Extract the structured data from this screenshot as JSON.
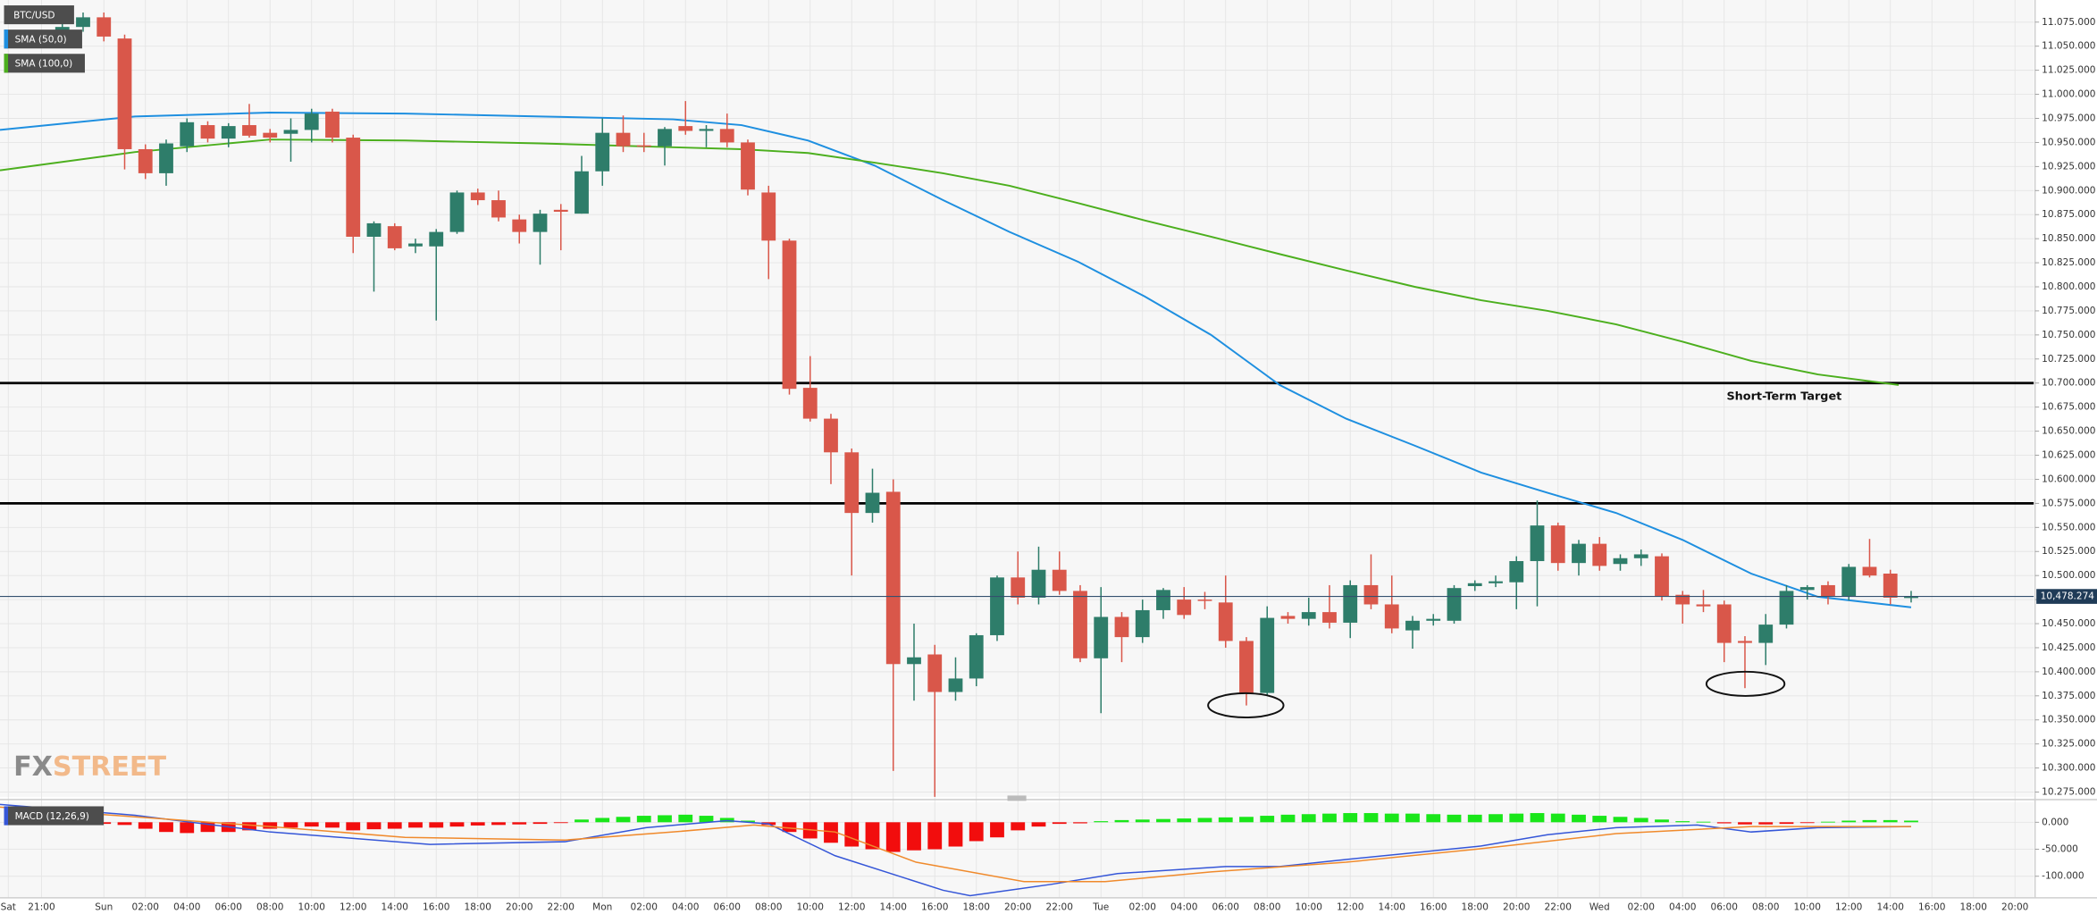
{
  "watermark": {
    "first": "FX",
    "second": "STREET"
  },
  "chart_data": [
    {
      "type": "candlestick",
      "title": "BTC/USD",
      "up_color": "#2e7d6a",
      "down_color": "#d9574a",
      "grid": true,
      "xlim": [
        -5,
        92.9
      ],
      "ylim": [
        10270,
        11098
      ],
      "x": [
        -2,
        -1,
        0,
        1,
        2,
        3,
        4,
        5,
        6,
        7,
        8,
        9,
        10,
        11,
        12,
        13,
        14,
        15,
        16,
        17,
        18,
        19,
        20,
        21,
        22,
        23,
        24,
        25,
        26,
        27,
        28,
        29,
        30,
        31,
        32,
        33,
        34,
        35,
        36,
        37,
        38,
        39,
        40,
        41,
        42,
        43,
        44,
        45,
        46,
        47,
        48,
        49,
        50,
        51,
        52,
        53,
        54,
        55,
        56,
        57,
        58,
        59,
        60,
        61,
        62,
        63,
        64,
        65,
        66,
        67,
        68,
        69,
        70,
        71,
        72,
        73,
        74,
        75,
        76,
        77,
        78,
        79,
        80,
        81,
        82,
        83,
        84,
        85,
        86,
        87
      ],
      "open": [
        11060,
        11070,
        11080,
        11058,
        10943,
        10918,
        10946,
        10968,
        10954,
        10968,
        10960,
        10959,
        10963,
        10982,
        10955,
        10852,
        10863,
        10842,
        10842,
        10857,
        10898,
        10890,
        10870,
        10857,
        10880,
        10876,
        10920,
        10960,
        10947,
        10946,
        10967,
        10962,
        10964,
        10950,
        10898,
        10848,
        10695,
        10663,
        10628,
        10565,
        10587,
        10408,
        10418,
        10379,
        10393,
        10438,
        10498,
        10477,
        10506,
        10484,
        10414,
        10457,
        10436,
        10464,
        10475,
        10475,
        10472,
        10432,
        10378,
        10458,
        10455,
        10462,
        10451,
        10490,
        10470,
        10443,
        10453,
        10453,
        10489,
        10492,
        10493,
        10515,
        10552,
        10513,
        10533,
        10512,
        10518,
        10520,
        10480,
        10470,
        10470,
        10432,
        10430,
        10449,
        10485,
        10490,
        10478,
        10509,
        10502,
        10477
      ],
      "high": [
        11080,
        11085,
        11085,
        11062,
        10948,
        10953,
        10975,
        10972,
        10970,
        10990,
        10964,
        10975,
        10985,
        10985,
        10958,
        10868,
        10866,
        10850,
        10860,
        10900,
        10902,
        10900,
        10875,
        10880,
        10886,
        10936,
        10975,
        10978,
        10960,
        10966,
        10993,
        10968,
        10980,
        10953,
        10905,
        10850,
        10728,
        10668,
        10632,
        10611,
        10600,
        10450,
        10428,
        10415,
        10440,
        10500,
        10525,
        10530,
        10525,
        10490,
        10488,
        10462,
        10475,
        10487,
        10488,
        10483,
        10500,
        10436,
        10468,
        10462,
        10477,
        10490,
        10495,
        10522,
        10500,
        10458,
        10460,
        10490,
        10495,
        10500,
        10520,
        10578,
        10555,
        10537,
        10540,
        10522,
        10527,
        10523,
        10484,
        10485,
        10474,
        10437,
        10460,
        10490,
        10490,
        10494,
        10512,
        10538,
        10506,
        10484
      ],
      "low": [
        11050,
        11065,
        11055,
        10922,
        10912,
        10905,
        10940,
        10950,
        10945,
        10955,
        10950,
        10930,
        10950,
        10950,
        10835,
        10795,
        10838,
        10835,
        10765,
        10855,
        10885,
        10868,
        10845,
        10823,
        10838,
        10876,
        10905,
        10940,
        10940,
        10926,
        10958,
        10945,
        10945,
        10895,
        10808,
        10688,
        10660,
        10595,
        10500,
        10555,
        10297,
        10370,
        10270,
        10370,
        10385,
        10432,
        10470,
        10470,
        10480,
        10410,
        10357,
        10410,
        10430,
        10455,
        10455,
        10465,
        10425,
        10365,
        10375,
        10450,
        10448,
        10445,
        10435,
        10465,
        10440,
        10424,
        10448,
        10450,
        10484,
        10488,
        10465,
        10468,
        10505,
        10500,
        10505,
        10505,
        10510,
        10474,
        10450,
        10462,
        10410,
        10383,
        10407,
        10445,
        10475,
        10470,
        10474,
        10498,
        10470,
        10472
      ],
      "close": [
        11070,
        11080,
        11060,
        10943,
        10918,
        10949,
        10971,
        10954,
        10967,
        10957,
        10955,
        10963,
        10980,
        10955,
        10852,
        10866,
        10840,
        10845,
        10857,
        10898,
        10890,
        10872,
        10857,
        10876,
        10878,
        10920,
        10960,
        10946,
        10946,
        10964,
        10962,
        10964,
        10950,
        10901,
        10848,
        10694,
        10663,
        10628,
        10565,
        10586,
        10408,
        10415,
        10379,
        10393,
        10438,
        10498,
        10477,
        10506,
        10484,
        10414,
        10457,
        10436,
        10464,
        10485,
        10459,
        10474,
        10432,
        10378,
        10456,
        10455,
        10462,
        10451,
        10490,
        10470,
        10445,
        10453,
        10455,
        10487,
        10492,
        10494,
        10515,
        10552,
        10513,
        10533,
        10510,
        10518,
        10522,
        10478,
        10470,
        10468,
        10430,
        10430,
        10449,
        10484,
        10488,
        10478,
        10509,
        10500,
        10477,
        10478
      ],
      "series": [
        {
          "name": "SMA (50,0)",
          "color": "#1e8fe0",
          "x": [
            -5.0,
            1.5,
            8.0,
            14.5,
            21.0,
            27.4,
            30.7,
            33.9,
            37.1,
            40.4,
            43.6,
            46.9,
            50.1,
            53.3,
            56.6,
            59.8,
            63.1,
            66.3,
            69.5,
            72.8,
            76.0,
            79.3,
            82.5,
            87.0
          ],
          "values": [
            10963,
            10977,
            10981,
            10980,
            10977,
            10974,
            10968,
            10952,
            10926,
            10890,
            10857,
            10826,
            10790,
            10750,
            10698,
            10663,
            10635,
            10607,
            10586,
            10565,
            10537,
            10502,
            10478,
            10467
          ]
        },
        {
          "name": "SMA (100,0)",
          "color": "#4caf1e",
          "x": [
            -5.0,
            1.5,
            8.0,
            14.5,
            21.0,
            27.4,
            30.7,
            33.9,
            37.1,
            40.4,
            43.6,
            46.9,
            50.1,
            53.3,
            56.6,
            59.8,
            63.1,
            66.3,
            69.5,
            72.8,
            76.0,
            79.3,
            82.5,
            86.4
          ],
          "values": [
            10921,
            10940,
            10953,
            10952,
            10949,
            10945,
            10943,
            10939,
            10929,
            10918,
            10905,
            10887,
            10869,
            10852,
            10834,
            10817,
            10800,
            10786,
            10775,
            10761,
            10743,
            10723,
            10709,
            10698
          ]
        }
      ],
      "hlines": [
        {
          "value": 10700,
          "label": "Short-Term Target"
        },
        {
          "value": 10575
        }
      ],
      "last_price": {
        "value": 10478.274,
        "label": "10,478.274"
      },
      "yticks": [
        {
          "value": 10275,
          "label": "10.275.000"
        },
        {
          "value": 10300,
          "label": "10.300.000"
        },
        {
          "value": 10325,
          "label": "10.325.000"
        },
        {
          "value": 10350,
          "label": "10.350.000"
        },
        {
          "value": 10375,
          "label": "10.375.000"
        },
        {
          "value": 10400,
          "label": "10.400.000"
        },
        {
          "value": 10425,
          "label": "10.425.000"
        },
        {
          "value": 10450,
          "label": "10.450.000"
        },
        {
          "value": 10475,
          "label": "10.475.000"
        },
        {
          "value": 10500,
          "label": "10.500.000"
        },
        {
          "value": 10525,
          "label": "10.525.000"
        },
        {
          "value": 10550,
          "label": "10.550.000"
        },
        {
          "value": 10575,
          "label": "10.575.000"
        },
        {
          "value": 10600,
          "label": "10.600.000"
        },
        {
          "value": 10625,
          "label": "10.625.000"
        },
        {
          "value": 10650,
          "label": "10.650.000"
        },
        {
          "value": 10675,
          "label": "10.675.000"
        },
        {
          "value": 10700,
          "label": "10.700.000"
        },
        {
          "value": 10725,
          "label": "10.725.000"
        },
        {
          "value": 10750,
          "label": "10.750.000"
        },
        {
          "value": 10775,
          "label": "10.775.000"
        },
        {
          "value": 10800,
          "label": "10.800.000"
        },
        {
          "value": 10825,
          "label": "10.825.000"
        },
        {
          "value": 10850,
          "label": "10.850.000"
        },
        {
          "value": 10875,
          "label": "10.875.000"
        },
        {
          "value": 10900,
          "label": "10.900.000"
        },
        {
          "value": 10925,
          "label": "10.925.000"
        },
        {
          "value": 10950,
          "label": "10.950.000"
        },
        {
          "value": 10975,
          "label": "10.975.000"
        },
        {
          "value": 11000,
          "label": "11.000.000"
        },
        {
          "value": 11025,
          "label": "11.025.000"
        },
        {
          "value": 11050,
          "label": "11.050.000"
        },
        {
          "value": 11075,
          "label": "11.075.000"
        }
      ],
      "xticks": [
        {
          "value": -4.6,
          "label": "Sat"
        },
        {
          "value": -3,
          "label": "21:00"
        },
        {
          "value": 0,
          "label": "Sun"
        },
        {
          "value": 2,
          "label": "02:00"
        },
        {
          "value": 4,
          "label": "04:00"
        },
        {
          "value": 6,
          "label": "06:00"
        },
        {
          "value": 8,
          "label": "08:00"
        },
        {
          "value": 10,
          "label": "10:00"
        },
        {
          "value": 12,
          "label": "12:00"
        },
        {
          "value": 14,
          "label": "14:00"
        },
        {
          "value": 16,
          "label": "16:00"
        },
        {
          "value": 18,
          "label": "18:00"
        },
        {
          "value": 20,
          "label": "20:00"
        },
        {
          "value": 22,
          "label": "22:00"
        },
        {
          "value": 24,
          "label": "Mon"
        },
        {
          "value": 26,
          "label": "02:00"
        },
        {
          "value": 28,
          "label": "04:00"
        },
        {
          "value": 30,
          "label": "06:00"
        },
        {
          "value": 32,
          "label": "08:00"
        },
        {
          "value": 34,
          "label": "10:00"
        },
        {
          "value": 36,
          "label": "12:00"
        },
        {
          "value": 38,
          "label": "14:00"
        },
        {
          "value": 40,
          "label": "16:00"
        },
        {
          "value": 42,
          "label": "18:00"
        },
        {
          "value": 44,
          "label": "20:00"
        },
        {
          "value": 46,
          "label": "22:00"
        },
        {
          "value": 48,
          "label": "Tue"
        },
        {
          "value": 50,
          "label": "02:00"
        },
        {
          "value": 52,
          "label": "04:00"
        },
        {
          "value": 54,
          "label": "06:00"
        },
        {
          "value": 56,
          "label": "08:00"
        },
        {
          "value": 58,
          "label": "10:00"
        },
        {
          "value": 60,
          "label": "12:00"
        },
        {
          "value": 62,
          "label": "14:00"
        },
        {
          "value": 64,
          "label": "16:00"
        },
        {
          "value": 66,
          "label": "18:00"
        },
        {
          "value": 68,
          "label": "20:00"
        },
        {
          "value": 70,
          "label": "22:00"
        },
        {
          "value": 72,
          "label": "Wed"
        },
        {
          "value": 74,
          "label": "02:00"
        },
        {
          "value": 76,
          "label": "04:00"
        },
        {
          "value": 78,
          "label": "06:00"
        },
        {
          "value": 80,
          "label": "08:00"
        },
        {
          "value": 82,
          "label": "10:00"
        },
        {
          "value": 84,
          "label": "12:00"
        },
        {
          "value": 86,
          "label": "14:00"
        },
        {
          "value": 88,
          "label": "16:00"
        },
        {
          "value": 90,
          "label": "18:00"
        },
        {
          "value": 92,
          "label": "20:00"
        }
      ]
    },
    {
      "type": "macd",
      "title": "MACD (12,26,9)",
      "up_color": "#19e619",
      "down_color": "#f20d0d",
      "xlim": [
        -5,
        92.9
      ],
      "ylim": [
        -140,
        37
      ],
      "yticks": [
        {
          "value": 0,
          "label": "0.000"
        },
        {
          "value": -50,
          "label": "-50.000"
        },
        {
          "value": -100,
          "label": "-100.000"
        }
      ],
      "x": [
        -2,
        -1,
        0,
        1,
        2,
        3,
        4,
        5,
        6,
        7,
        8,
        9,
        10,
        11,
        12,
        13,
        14,
        15,
        16,
        17,
        18,
        19,
        20,
        21,
        22,
        23,
        24,
        25,
        26,
        27,
        28,
        29,
        30,
        31,
        32,
        33,
        34,
        35,
        36,
        37,
        38,
        39,
        40,
        41,
        42,
        43,
        44,
        45,
        46,
        47,
        48,
        49,
        50,
        51,
        52,
        53,
        54,
        55,
        56,
        57,
        58,
        59,
        60,
        61,
        62,
        63,
        64,
        65,
        66,
        67,
        68,
        69,
        70,
        71,
        72,
        73,
        74,
        75,
        76,
        77,
        78,
        79,
        80,
        81,
        82,
        83,
        84,
        85,
        86,
        87
      ],
      "histogram": [
        -1,
        -2,
        -3,
        -5,
        -12,
        -18,
        -20,
        -18,
        -18,
        -15,
        -12,
        -10,
        -8,
        -10,
        -15,
        -13,
        -12,
        -10,
        -10,
        -8,
        -6,
        -5,
        -4,
        -3,
        -1,
        5,
        8,
        10,
        12,
        13,
        14,
        12,
        8,
        3,
        -5,
        -18,
        -30,
        -38,
        -45,
        -50,
        -55,
        -52,
        -50,
        -45,
        -35,
        -28,
        -15,
        -8,
        -3,
        -2,
        2,
        4,
        5,
        6,
        7,
        8,
        9,
        10,
        12,
        14,
        15,
        16,
        17,
        17,
        16,
        16,
        15,
        14,
        14,
        15,
        16,
        17,
        16,
        14,
        12,
        10,
        8,
        5,
        2,
        1,
        -2,
        -4,
        -4,
        -3,
        -1,
        1,
        3,
        4,
        4,
        3
      ],
      "lines": [
        {
          "color": "#3556d8",
          "x": [
            -5.0,
            1.5,
            8.0,
            15.7,
            22.2,
            26.1,
            30.0,
            32.0,
            35.2,
            40.4,
            41.7,
            45.6,
            48.8,
            54.0,
            56.6,
            59.8,
            66.3,
            69.5,
            72.8,
            76.7,
            79.3,
            82.5,
            87.0
          ],
          "values": [
            33,
            13,
            -18,
            -41,
            -36,
            -10,
            3,
            -3,
            -62,
            -126,
            -136,
            -115,
            -95,
            -82,
            -82,
            -69,
            -44,
            -23,
            -10,
            -5,
            -18,
            -10,
            -8
          ]
        },
        {
          "color": "#f08a2c",
          "x": [
            -5.0,
            1.5,
            8.0,
            14.5,
            22.2,
            27.4,
            31.3,
            35.2,
            39.1,
            44.3,
            48.2,
            53.3,
            59.8,
            66.3,
            72.8,
            79.3,
            87.0
          ],
          "values": [
            28,
            10,
            -8,
            -28,
            -33,
            -18,
            -5,
            -18,
            -74,
            -110,
            -110,
            -92,
            -74,
            -49,
            -21,
            -8,
            -8
          ]
        }
      ]
    }
  ]
}
